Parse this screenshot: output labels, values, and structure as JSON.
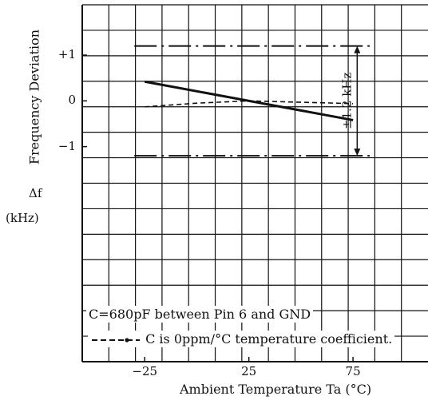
{
  "chart_data": {
    "type": "line",
    "title": "",
    "xlabel": "Ambient Temperature Ta (°C)",
    "ylabel_line1": "Frequency Deviation",
    "ylabel_symbol": "Δf",
    "ylabel_unit": "(kHz)",
    "x_ticks": [
      {
        "value": -25,
        "label": "−25"
      },
      {
        "value": 25,
        "label": "25"
      },
      {
        "value": 75,
        "label": "75"
      }
    ],
    "y_ticks": [
      {
        "value": 1,
        "label": "+1"
      },
      {
        "value": 0,
        "label": "0"
      },
      {
        "value": -1,
        "label": "−1"
      }
    ],
    "xlim": [
      -55,
      111
    ],
    "ylim": [
      -5.7,
      2.1
    ],
    "grid": true,
    "series": [
      {
        "style": "solid",
        "x": [
          -25,
          75
        ],
        "y": [
          0.42,
          -0.42
        ]
      },
      {
        "style": "dashed",
        "x": [
          -25,
          0,
          25,
          50,
          75
        ],
        "y": [
          -0.13,
          -0.05,
          0.0,
          -0.03,
          -0.06
        ]
      }
    ],
    "limit_lines": [
      {
        "style": "dash-dot",
        "y": 1.2,
        "x": [
          -30,
          83
        ]
      },
      {
        "style": "dash-dot",
        "y": -1.2,
        "x": [
          -30,
          83
        ]
      }
    ],
    "span_annotation": {
      "label": "±1.2 kHz",
      "y": [
        1.2,
        -1.2
      ],
      "x": 77
    },
    "notes": [
      "C=680pF between Pin 6 and GND",
      "C is 0ppm/°C temperature coefficient."
    ],
    "colors": {
      "ink": "#111111",
      "background": "#ffffff"
    }
  }
}
